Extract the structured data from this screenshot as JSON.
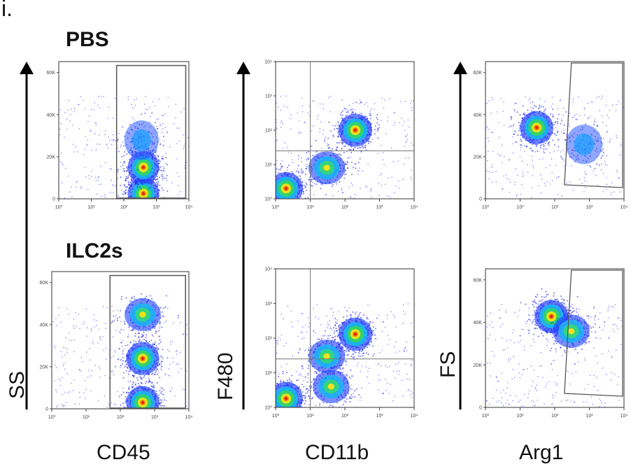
{
  "figure": {
    "panel_label": "i.",
    "conditions": [
      "PBS",
      "ILC2s"
    ],
    "column_x_labels": [
      "CD45",
      "CD11b",
      "Arg1"
    ],
    "column_y_labels": [
      "SS",
      "F480",
      "FS"
    ]
  },
  "chart_data": [
    {
      "type": "scatter",
      "condition": "PBS",
      "xlabel": "CD45",
      "ylabel": "SS",
      "xscale": "log",
      "xlim": [
        1,
        10000
      ],
      "xticks": [
        "10⁰",
        "10¹",
        "10²",
        "10³",
        "10⁴"
      ],
      "ylim": [
        0,
        65536
      ],
      "yticks": [
        "0",
        "20K",
        "40K",
        "60K"
      ],
      "clusters": [
        {
          "x": 400,
          "y": 2500,
          "density": "high"
        },
        {
          "x": 400,
          "y": 15000,
          "density": "high"
        },
        {
          "x": 350,
          "y": 28000,
          "density": "low"
        }
      ],
      "gate": {
        "type": "rectangle",
        "x": [
          60,
          8000
        ],
        "y": [
          0,
          64000
        ]
      }
    },
    {
      "type": "scatter",
      "condition": "PBS",
      "xlabel": "CD11b",
      "ylabel": "F480",
      "xscale": "log",
      "yscale": "log",
      "xlim": [
        1,
        10000
      ],
      "xticks": [
        "10⁰",
        "10¹",
        "10²",
        "10³",
        "10⁴"
      ],
      "ylim": [
        1,
        10000
      ],
      "yticks": [
        "10⁰",
        "10¹",
        "10²",
        "10³",
        "10⁴"
      ],
      "clusters": [
        {
          "x": 2,
          "y": 2,
          "density": "high"
        },
        {
          "x": 30,
          "y": 8,
          "density": "medium"
        },
        {
          "x": 200,
          "y": 100,
          "density": "high"
        }
      ],
      "quadrant_lines": {
        "x": 10,
        "y": 25
      }
    },
    {
      "type": "scatter",
      "condition": "PBS",
      "xlabel": "Arg1",
      "ylabel": "FS",
      "xscale": "log",
      "xlim": [
        1,
        10000
      ],
      "xticks": [
        "10⁰",
        "10¹",
        "10²",
        "10³",
        "10⁴"
      ],
      "ylim": [
        0,
        65536
      ],
      "yticks": [
        "0",
        "20K",
        "40K",
        "60K"
      ],
      "clusters": [
        {
          "x": 30,
          "y": 34000,
          "density": "high"
        },
        {
          "x": 700,
          "y": 26000,
          "density": "low"
        }
      ],
      "gate": {
        "type": "polygon"
      }
    },
    {
      "type": "scatter",
      "condition": "ILC2s",
      "xlabel": "CD45",
      "ylabel": "SS",
      "xscale": "log",
      "xlim": [
        1,
        10000
      ],
      "xticks": [
        "10⁰",
        "10¹",
        "10²",
        "10³",
        "10⁴"
      ],
      "ylim": [
        0,
        65536
      ],
      "yticks": [
        "0",
        "20K",
        "40K",
        "60K"
      ],
      "clusters": [
        {
          "x": 450,
          "y": 3000,
          "density": "high"
        },
        {
          "x": 450,
          "y": 24000,
          "density": "high"
        },
        {
          "x": 450,
          "y": 45000,
          "density": "medium"
        }
      ],
      "gate": {
        "type": "rectangle",
        "x": [
          50,
          8000
        ],
        "y": [
          0,
          64000
        ]
      }
    },
    {
      "type": "scatter",
      "condition": "ILC2s",
      "xlabel": "CD11b",
      "ylabel": "F480",
      "xscale": "log",
      "yscale": "log",
      "xlim": [
        1,
        10000
      ],
      "xticks": [
        "10⁰",
        "10¹",
        "10²",
        "10³",
        "10⁴"
      ],
      "ylim": [
        1,
        10000
      ],
      "yticks": [
        "10⁰",
        "10¹",
        "10²",
        "10³",
        "10⁴"
      ],
      "clusters": [
        {
          "x": 2,
          "y": 1.8,
          "density": "high"
        },
        {
          "x": 40,
          "y": 4,
          "density": "medium"
        },
        {
          "x": 30,
          "y": 30,
          "density": "medium"
        },
        {
          "x": 200,
          "y": 130,
          "density": "high"
        }
      ],
      "quadrant_lines": {
        "x": 10,
        "y": 25
      }
    },
    {
      "type": "scatter",
      "condition": "ILC2s",
      "xlabel": "Arg1",
      "ylabel": "FS",
      "xscale": "log",
      "xlim": [
        1,
        10000
      ],
      "xticks": [
        "10⁰",
        "10¹",
        "10²",
        "10³",
        "10⁴"
      ],
      "ylim": [
        0,
        65536
      ],
      "yticks": [
        "0",
        "20K",
        "40K",
        "60K"
      ],
      "clusters": [
        {
          "x": 80,
          "y": 43000,
          "density": "high"
        },
        {
          "x": 300,
          "y": 36000,
          "density": "medium"
        }
      ],
      "gate": {
        "type": "polygon"
      }
    }
  ]
}
